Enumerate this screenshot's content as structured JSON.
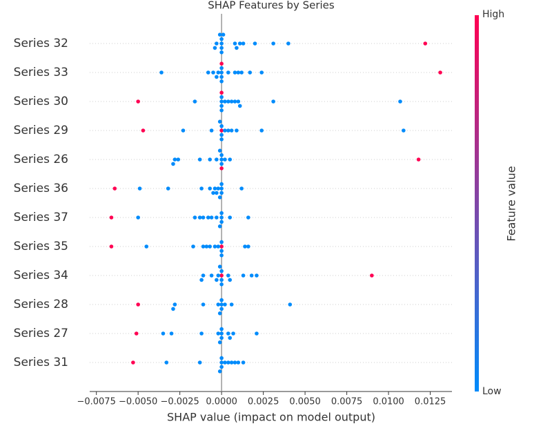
{
  "chart_data": {
    "type": "beeswarm",
    "title": "SHAP Features by Series",
    "x_label": "SHAP value (impact on model output)",
    "xlim": [
      -0.0079,
      0.0138
    ],
    "xticks": [
      {
        "value": -0.0075,
        "label": "−0.0075"
      },
      {
        "value": -0.005,
        "label": "−0.0050"
      },
      {
        "value": -0.0025,
        "label": "−0.0025"
      },
      {
        "value": 0,
        "label": "0.0000"
      },
      {
        "value": 0.0025,
        "label": "0.0025"
      },
      {
        "value": 0.005,
        "label": "0.0050"
      },
      {
        "value": 0.0075,
        "label": "0.0075"
      },
      {
        "value": 0.01,
        "label": "0.0100"
      },
      {
        "value": 0.0125,
        "label": "0.0125"
      }
    ],
    "low_color": "#008bfb",
    "high_color": "#ff0052",
    "colorbar": {
      "title": "Feature value",
      "high_label": "High",
      "low_label": "Low"
    },
    "series": [
      {
        "name": "Series 32",
        "values": [
          -0.0004,
          -0.0003,
          -0.0001,
          0,
          0,
          0,
          0,
          0.0001,
          0.0008,
          0.0009,
          0.0011,
          0.0013,
          0.002,
          0.0031,
          0.004,
          0.0122
        ],
        "feature_values": [
          0,
          0,
          0,
          0,
          0,
          0,
          0,
          0,
          0,
          0,
          0,
          0,
          0,
          0,
          0,
          1
        ]
      },
      {
        "name": "Series 33",
        "values": [
          -0.0036,
          -0.0008,
          -0.0005,
          -0.0003,
          -0.0002,
          0,
          0,
          0,
          0,
          0.0004,
          0.0008,
          0.001,
          0.0012,
          0.0017,
          0.0024,
          0,
          0.0131
        ],
        "feature_values": [
          0,
          0,
          0,
          0,
          0,
          0,
          0,
          0,
          0,
          0,
          0,
          0,
          0,
          0,
          0,
          1,
          1
        ]
      },
      {
        "name": "Series 30",
        "values": [
          -0.005,
          -0.0016,
          0,
          0,
          0,
          0,
          0.0002,
          0.0004,
          0.0006,
          0.0008,
          0.001,
          0.0011,
          0.0031,
          0.0107,
          0
        ],
        "feature_values": [
          1,
          0,
          0,
          0,
          0,
          0,
          0,
          0,
          0,
          0,
          0,
          0,
          0,
          0,
          1
        ]
      },
      {
        "name": "Series 29",
        "values": [
          -0.0047,
          0,
          -0.0023,
          -0.0006,
          -0.0001,
          0,
          0,
          0,
          0.0002,
          0.0004,
          0.0006,
          0.0009,
          0.0024,
          0.0109
        ],
        "feature_values": [
          1,
          1,
          0,
          0,
          0,
          0,
          0,
          0,
          0,
          0,
          0,
          0,
          0,
          0
        ]
      },
      {
        "name": "Series 26",
        "values": [
          -0.0029,
          -0.0028,
          -0.0026,
          -0.0013,
          -0.0007,
          -0.0003,
          -0.0001,
          0,
          0,
          0,
          0.0002,
          0.0005,
          0.0118,
          0
        ],
        "feature_values": [
          0,
          0,
          0,
          0,
          0,
          0,
          0,
          0,
          0,
          0,
          0,
          0,
          1,
          1
        ]
      },
      {
        "name": "Series 36",
        "values": [
          -0.0064,
          -0.0049,
          -0.0032,
          -0.0012,
          -0.0007,
          -0.0005,
          -0.0004,
          -0.0003,
          -0.0002,
          -0.0001,
          0,
          0,
          0,
          0.0012
        ],
        "feature_values": [
          1,
          0,
          0,
          0,
          0,
          0,
          0,
          0,
          0,
          0,
          0,
          0,
          0,
          0
        ]
      },
      {
        "name": "Series 37",
        "values": [
          -0.0066,
          -0.005,
          -0.0016,
          -0.0013,
          -0.0011,
          -0.0008,
          -0.0006,
          -0.0003,
          -0.0001,
          0,
          0,
          0,
          0.0005,
          0.0016
        ],
        "feature_values": [
          1,
          0,
          0,
          0,
          0,
          0,
          0,
          0,
          0,
          0,
          0,
          0,
          0,
          0
        ]
      },
      {
        "name": "Series 35",
        "values": [
          -0.0066,
          0,
          -0.0045,
          -0.0017,
          -0.0011,
          -0.0009,
          -0.0007,
          -0.0004,
          -0.0002,
          0,
          0,
          0,
          0.0014,
          0.0016
        ],
        "feature_values": [
          1,
          1,
          0,
          0,
          0,
          0,
          0,
          0,
          0,
          0,
          0,
          0,
          0,
          0
        ]
      },
      {
        "name": "Series 34",
        "values": [
          0.009,
          0,
          -0.0012,
          -0.0011,
          -0.0006,
          -0.0003,
          -0.0002,
          -0.0001,
          0,
          0,
          0,
          0.0005,
          0.0004,
          0.0013,
          0.0018,
          0.0021
        ],
        "feature_values": [
          1,
          1,
          0,
          0,
          0,
          0,
          0,
          0,
          0,
          0,
          0,
          0,
          0,
          0,
          0,
          0
        ]
      },
      {
        "name": "Series 28",
        "values": [
          -0.005,
          -0.0029,
          -0.0028,
          -0.0011,
          -0.0002,
          -0.0001,
          0,
          0,
          0,
          0.0002,
          0.0006,
          0.0041
        ],
        "feature_values": [
          1,
          0,
          0,
          0,
          0,
          0,
          0,
          0,
          0,
          0,
          0,
          0
        ]
      },
      {
        "name": "Series 27",
        "values": [
          -0.0051,
          -0.0035,
          -0.003,
          -0.0012,
          -0.0002,
          -0.0001,
          0,
          0,
          0,
          0.0004,
          0.0005,
          0.0007,
          0.0021
        ],
        "feature_values": [
          1,
          0,
          0,
          0,
          0,
          0,
          0,
          0,
          0,
          0,
          0,
          0,
          0
        ]
      },
      {
        "name": "Series 31",
        "values": [
          -0.0053,
          -0.0033,
          -0.0013,
          -0.0001,
          0,
          0,
          0,
          0.0002,
          0.0004,
          0.0006,
          0.0008,
          0.001,
          0.0013
        ],
        "feature_values": [
          1,
          0,
          0,
          0,
          0,
          0,
          0,
          0,
          0,
          0,
          0,
          0,
          0
        ]
      }
    ]
  }
}
